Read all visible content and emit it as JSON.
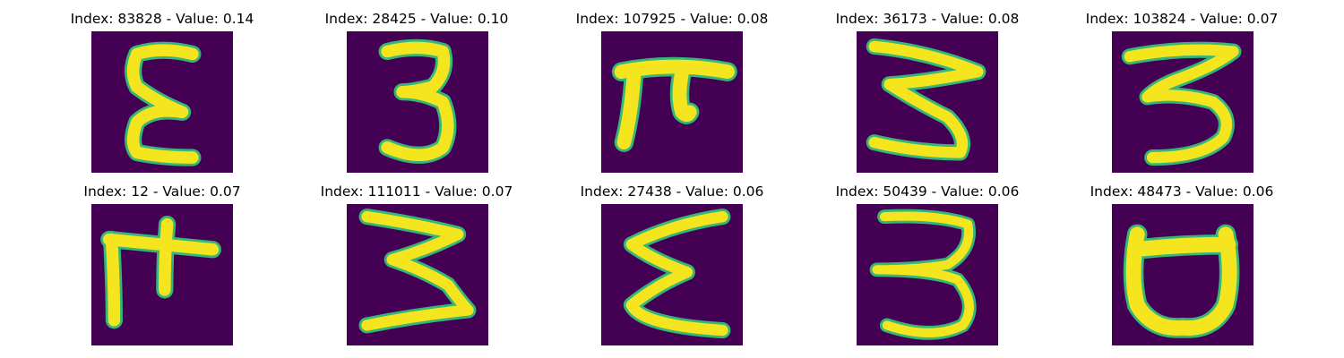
{
  "colors": {
    "background": "#440154",
    "glyph_core": "#f5e51f",
    "glyph_edge": "#35b779"
  },
  "panels": [
    {
      "title": "Index: 83828 - Value: 0.14",
      "glyph": "epsilon-shape"
    },
    {
      "title": "Index: 28425 - Value: 0.10",
      "glyph": "three-shape"
    },
    {
      "title": "Index: 107925 - Value: 0.08",
      "glyph": "pi-shape"
    },
    {
      "title": "Index: 36173 - Value: 0.08",
      "glyph": "sigma-shape"
    },
    {
      "title": "Index: 103824 - Value: 0.07",
      "glyph": "three-shape"
    },
    {
      "title": "Index: 12 - Value: 0.07",
      "glyph": "pi-shape"
    },
    {
      "title": "Index: 111011 - Value: 0.07",
      "glyph": "three-shape"
    },
    {
      "title": "Index: 27438 - Value: 0.06",
      "glyph": "sigma-shape"
    },
    {
      "title": "Index: 50439 - Value: 0.06",
      "glyph": "three-shape"
    },
    {
      "title": "Index: 48473 - Value: 0.06",
      "glyph": "cup-shape"
    }
  ]
}
